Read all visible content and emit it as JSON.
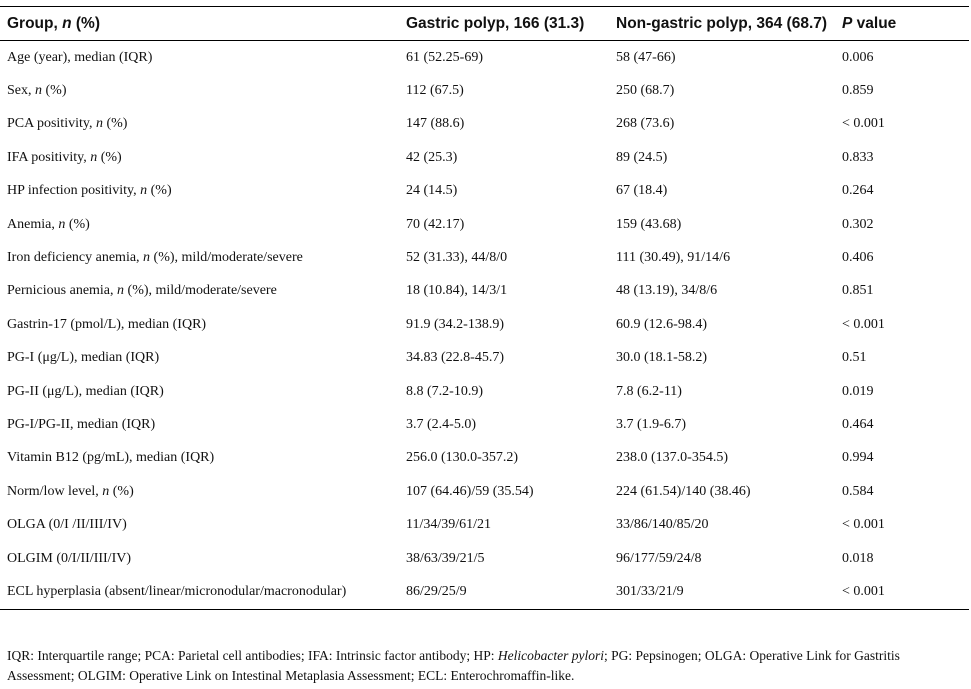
{
  "table": {
    "headers": [
      {
        "pre": "Group, ",
        "em": "n",
        "post": " (%)"
      },
      {
        "pre": "Gastric polyp, 166 (31.3)",
        "em": "",
        "post": ""
      },
      {
        "pre": "Non-gastric polyp, 364 (68.7)",
        "em": "",
        "post": ""
      },
      {
        "pre": "",
        "em": "P",
        "post": " value"
      }
    ],
    "rows": [
      {
        "label_pre": "Age (year), median (IQR)",
        "label_em": "",
        "label_post": "",
        "gastric": "61 (52.25-69)",
        "non_gastric": "58 (47-66)",
        "p": "0.006"
      },
      {
        "label_pre": "Sex, ",
        "label_em": "n",
        "label_post": " (%)",
        "gastric": "112 (67.5)",
        "non_gastric": "250 (68.7)",
        "p": "0.859"
      },
      {
        "label_pre": "PCA positivity, ",
        "label_em": "n",
        "label_post": " (%)",
        "gastric": "147 (88.6)",
        "non_gastric": "268 (73.6)",
        "p": "< 0.001"
      },
      {
        "label_pre": "IFA positivity, ",
        "label_em": "n",
        "label_post": " (%)",
        "gastric": "42 (25.3)",
        "non_gastric": "89 (24.5)",
        "p": "0.833"
      },
      {
        "label_pre": "HP infection positivity, ",
        "label_em": "n",
        "label_post": " (%)",
        "gastric": "24 (14.5)",
        "non_gastric": "67 (18.4)",
        "p": "0.264"
      },
      {
        "label_pre": "Anemia, ",
        "label_em": "n",
        "label_post": " (%)",
        "gastric": "70 (42.17)",
        "non_gastric": "159 (43.68)",
        "p": "0.302"
      },
      {
        "label_pre": "Iron deficiency anemia, ",
        "label_em": "n",
        "label_post": " (%), mild/moderate/severe",
        "gastric": "52 (31.33), 44/8/0",
        "non_gastric": "111 (30.49), 91/14/6",
        "p": "0.406"
      },
      {
        "label_pre": "Pernicious anemia, ",
        "label_em": "n",
        "label_post": " (%), mild/moderate/severe",
        "gastric": "18 (10.84), 14/3/1",
        "non_gastric": "48 (13.19), 34/8/6",
        "p": "0.851"
      },
      {
        "label_pre": "Gastrin-17 (pmol/L), median (IQR)",
        "label_em": "",
        "label_post": "",
        "gastric": "91.9 (34.2-138.9)",
        "non_gastric": "60.9 (12.6-98.4)",
        "p": "< 0.001"
      },
      {
        "label_pre": "PG-I (μg/L), median (IQR)",
        "label_em": "",
        "label_post": "",
        "gastric": "34.83 (22.8-45.7)",
        "non_gastric": "30.0 (18.1-58.2)",
        "p": "0.51"
      },
      {
        "label_pre": "PG-II (μg/L), median (IQR)",
        "label_em": "",
        "label_post": "",
        "gastric": "8.8 (7.2-10.9)",
        "non_gastric": "7.8 (6.2-11)",
        "p": "0.019"
      },
      {
        "label_pre": "PG-I/PG-II, median (IQR)",
        "label_em": "",
        "label_post": "",
        "gastric": "3.7 (2.4-5.0)",
        "non_gastric": "3.7 (1.9-6.7)",
        "p": "0.464"
      },
      {
        "label_pre": "Vitamin B12 (pg/mL), median (IQR)",
        "label_em": "",
        "label_post": "",
        "gastric": "256.0 (130.0-357.2)",
        "non_gastric": "238.0 (137.0-354.5)",
        "p": "0.994"
      },
      {
        "label_pre": "Norm/low level, ",
        "label_em": "n",
        "label_post": " (%)",
        "gastric": "107 (64.46)/59 (35.54)",
        "non_gastric": "224 (61.54)/140 (38.46)",
        "p": "0.584"
      },
      {
        "label_pre": "OLGA (0/I /II/III/IV)",
        "label_em": "",
        "label_post": "",
        "gastric": "11/34/39/61/21",
        "non_gastric": "33/86/140/85/20",
        "p": "< 0.001"
      },
      {
        "label_pre": "OLGIM (0/I/II/III/IV)",
        "label_em": "",
        "label_post": "",
        "gastric": "38/63/39/21/5",
        "non_gastric": "96/177/59/24/8",
        "p": "0.018"
      },
      {
        "label_pre": "ECL hyperplasia (absent/linear/micronodular/macronodular)",
        "label_em": "",
        "label_post": "",
        "gastric": "86/29/25/9",
        "non_gastric": "301/33/21/9",
        "p": "< 0.001"
      }
    ]
  },
  "footnote": {
    "pre": "IQR: Interquartile range; PCA: Parietal cell antibodies; IFA: Intrinsic factor antibody; HP: ",
    "em": "Helicobacter pylori",
    "post": "; PG: Pepsinogen; OLGA: Operative Link for Gastritis Assessment; OLGIM: Operative Link on Intestinal Metaplasia Assessment; ECL: Enterochromaffin-like."
  }
}
